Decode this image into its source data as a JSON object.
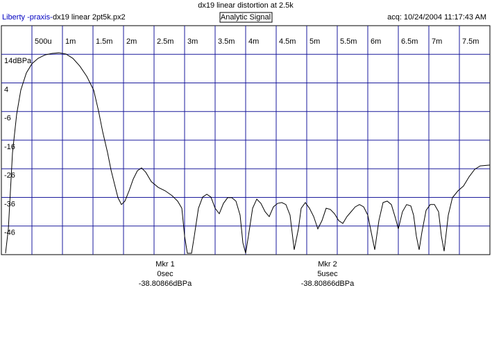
{
  "header": {
    "app": "Liberty -praxis-",
    "file": "dx19 linear 2pt5k.px2",
    "mode": "Analytic Signal",
    "acq": "acq: 10/24/2004 11:17:43 AM"
  },
  "chart_data": {
    "type": "line",
    "title": "dx19 linear distortion at 2.5k",
    "color": "#000000",
    "grid": true,
    "xlim": [
      0,
      0.008
    ],
    "ylim": [
      -56,
      24
    ],
    "xticks": [
      {
        "value": 0.0005,
        "label": "500u"
      },
      {
        "value": 0.001,
        "label": "1m"
      },
      {
        "value": 0.0015,
        "label": "1.5m"
      },
      {
        "value": 0.002,
        "label": "2m"
      },
      {
        "value": 0.0025,
        "label": "2.5m"
      },
      {
        "value": 0.003,
        "label": "3m"
      },
      {
        "value": 0.0035,
        "label": "3.5m"
      },
      {
        "value": 0.004,
        "label": "4m"
      },
      {
        "value": 0.0045,
        "label": "4.5m"
      },
      {
        "value": 0.005,
        "label": "5m"
      },
      {
        "value": 0.0055,
        "label": "5.5m"
      },
      {
        "value": 0.006,
        "label": "6m"
      },
      {
        "value": 0.0065,
        "label": "6.5m"
      },
      {
        "value": 0.007,
        "label": "7m"
      },
      {
        "value": 0.0075,
        "label": "7.5m"
      }
    ],
    "yticks": [
      {
        "value": 14,
        "label": "14dBPa"
      },
      4,
      -6,
      -16,
      -26,
      -36,
      -46
    ],
    "x": [
      6.8e-05,
      0.000114,
      0.000182,
      0.00025,
      0.000318,
      0.000409,
      0.0005,
      0.000602,
      0.000716,
      0.00083,
      0.000943,
      0.001057,
      0.00117,
      0.001284,
      0.001398,
      0.001511,
      0.001591,
      0.001659,
      0.001739,
      0.001795,
      0.001852,
      0.001909,
      0.001966,
      0.002023,
      0.002091,
      0.002159,
      0.002227,
      0.002295,
      0.002364,
      0.002455,
      0.002568,
      0.002682,
      0.002795,
      0.002886,
      0.002955,
      0.003,
      0.003045,
      0.003114,
      0.003159,
      0.003227,
      0.003295,
      0.003364,
      0.003432,
      0.0035,
      0.003568,
      0.003636,
      0.003705,
      0.003773,
      0.003841,
      0.003909,
      0.003955,
      0.004,
      0.004045,
      0.004114,
      0.004182,
      0.00425,
      0.004318,
      0.004386,
      0.004455,
      0.004523,
      0.004591,
      0.004659,
      0.004727,
      0.004795,
      0.004864,
      0.004909,
      0.004977,
      0.005045,
      0.005114,
      0.005182,
      0.00525,
      0.005318,
      0.005386,
      0.005455,
      0.005523,
      0.005591,
      0.005659,
      0.005727,
      0.005795,
      0.005864,
      0.005932,
      0.006,
      0.006045,
      0.006114,
      0.006182,
      0.00625,
      0.006318,
      0.006386,
      0.006455,
      0.0065,
      0.006568,
      0.006636,
      0.006705,
      0.00675,
      0.006795,
      0.006841,
      0.006886,
      0.006955,
      0.007023,
      0.007091,
      0.007159,
      0.007205,
      0.00725,
      0.007318,
      0.007386,
      0.007477,
      0.007568,
      0.007659,
      0.00775,
      0.007841,
      0.008
    ],
    "values": [
      -55.5,
      -47.0,
      -20.4,
      -7.0,
      1.5,
      7.5,
      10.7,
      12.6,
      13.8,
      14.3,
      14.5,
      14.1,
      12.6,
      9.9,
      6.3,
      1.5,
      -5.8,
      -13.1,
      -20.4,
      -26.4,
      -31.3,
      -36.1,
      -38.5,
      -37.3,
      -33.7,
      -29.6,
      -26.7,
      -25.7,
      -27.2,
      -30.5,
      -32.5,
      -33.7,
      -35.4,
      -37.3,
      -39.8,
      -49.5,
      -55.5,
      -55.5,
      -49.5,
      -39.8,
      -35.9,
      -34.9,
      -35.9,
      -39.8,
      -41.7,
      -38.1,
      -36.1,
      -36.1,
      -37.3,
      -42.2,
      -51.9,
      -55.5,
      -49.5,
      -39.8,
      -36.6,
      -38.1,
      -41.0,
      -42.7,
      -39.3,
      -38.1,
      -37.8,
      -38.5,
      -42.2,
      -54.3,
      -47.0,
      -39.8,
      -37.8,
      -39.8,
      -42.7,
      -47.0,
      -44.1,
      -39.8,
      -40.2,
      -41.7,
      -44.1,
      -45.1,
      -42.7,
      -41.0,
      -39.3,
      -38.5,
      -39.3,
      -42.2,
      -47.0,
      -54.3,
      -44.1,
      -37.8,
      -37.3,
      -38.5,
      -43.4,
      -47.0,
      -41.0,
      -38.5,
      -39.0,
      -42.2,
      -49.5,
      -54.3,
      -48.2,
      -40.5,
      -38.5,
      -38.5,
      -41.0,
      -49.5,
      -54.8,
      -42.2,
      -36.1,
      -33.7,
      -32.0,
      -28.8,
      -26.2,
      -25.0,
      -24.7
    ]
  },
  "markers": [
    {
      "name": "Mkr 1",
      "time": "0sec",
      "level": "-38.80866dBPa"
    },
    {
      "name": "Mkr 2",
      "time": "5usec",
      "level": "-38.80866dBPa"
    }
  ]
}
